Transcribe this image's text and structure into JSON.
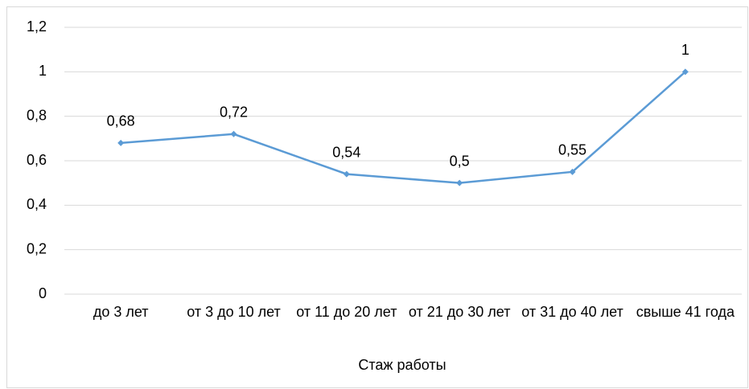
{
  "chart_data": {
    "type": "line",
    "x_label": "Стаж работы",
    "categories": [
      "до 3 лет",
      "от 3 до 10 лет",
      "от 11 до 20 лет",
      "от 21 до 30 лет",
      "от 31 до 40 лет",
      "свыше 41 года"
    ],
    "series": [
      {
        "color": "#5b9bd5",
        "values": [
          0.68,
          0.72,
          0.54,
          0.5,
          0.55,
          1
        ],
        "value_labels": [
          "0,68",
          "0,72",
          "0,54",
          "0,5",
          "0,55",
          "1"
        ]
      }
    ],
    "ylim": [
      0,
      1.2
    ],
    "yticks": [
      0,
      {
        "value": 0.2,
        "label": "0,2"
      },
      {
        "value": 0.4,
        "label": "0,4"
      },
      {
        "value": 0.6,
        "label": "0,6"
      },
      {
        "value": 0.8,
        "label": "0,8"
      },
      1,
      {
        "value": 1.2,
        "label": "1,2"
      }
    ],
    "grid": true
  }
}
